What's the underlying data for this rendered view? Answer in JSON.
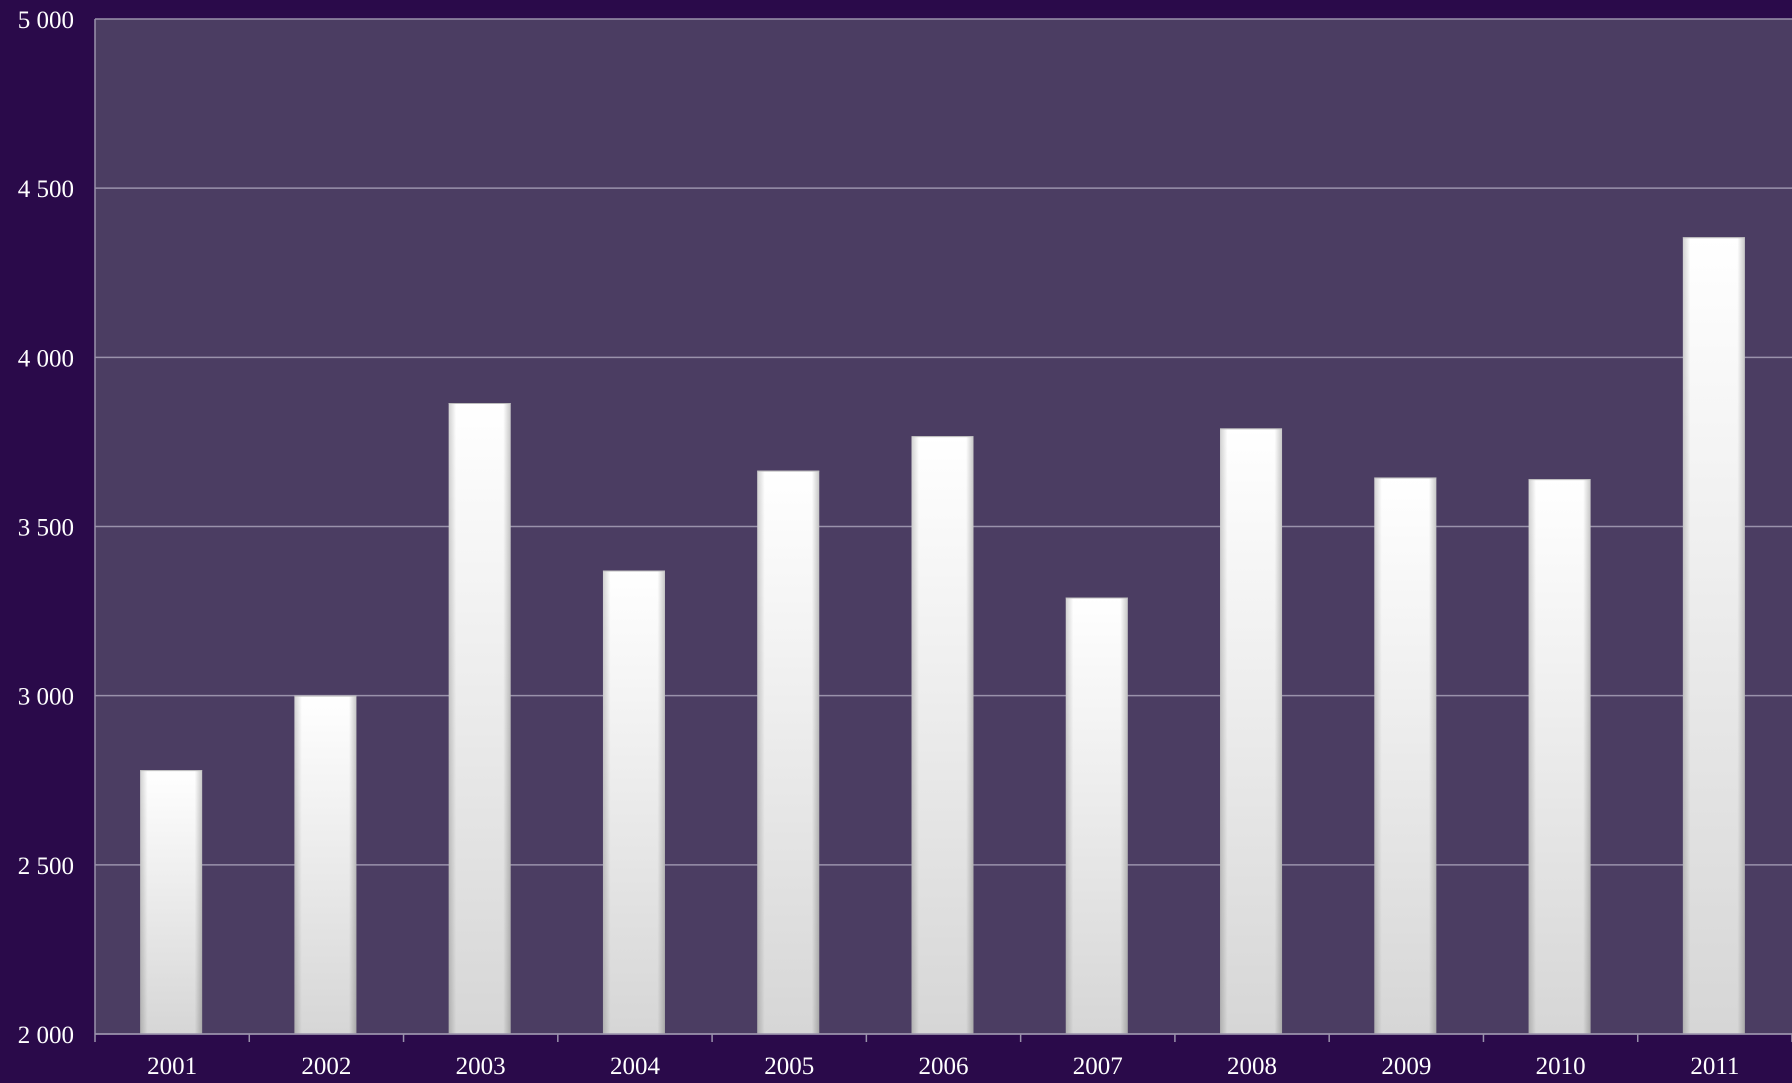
{
  "chart_data": {
    "type": "bar",
    "title": "",
    "xlabel": "",
    "ylabel": "",
    "categories": [
      "2001",
      "2002",
      "2003",
      "2004",
      "2005",
      "2006",
      "2007",
      "2008",
      "2009",
      "2010",
      "2011"
    ],
    "values": [
      2780,
      3000,
      3865,
      3370,
      3665,
      3767,
      3290,
      3790,
      3645,
      3640,
      4355
    ],
    "ylim": [
      2000,
      5000
    ],
    "yticks": [
      2000,
      2500,
      3000,
      3500,
      4000,
      4500,
      5000
    ],
    "ytick_labels": [
      "2 000",
      "2 500",
      "3 000",
      "3 500",
      "4 000",
      "4 500",
      "5 000"
    ],
    "grid": true,
    "legend": "none",
    "colors": {
      "background": "#2a0a4a",
      "plot_area": "#4b3d62",
      "gridline": "#9a92ab",
      "bar_top": "#ffffff",
      "bar_bottom": "#d6d6d6",
      "text": "#ffffff"
    }
  }
}
